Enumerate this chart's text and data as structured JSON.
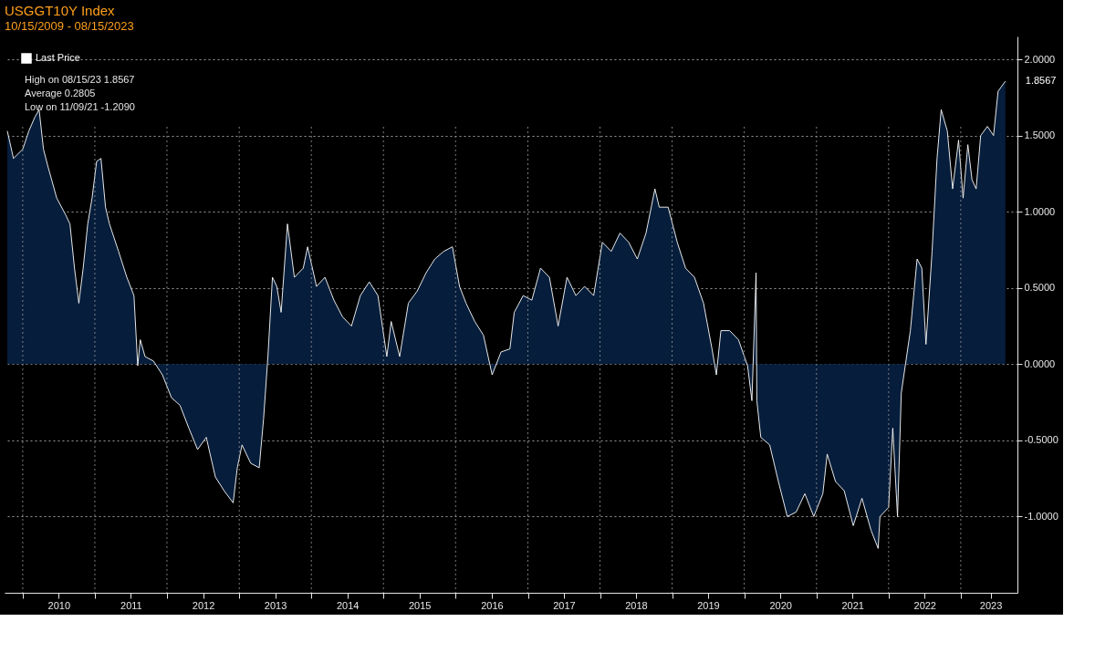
{
  "chart_data": {
    "type": "area",
    "title": "USGGT10Y Index",
    "subtitle": "10/15/2009 - 08/15/2023",
    "x": [
      "2009-10-15",
      "2009-11-15",
      "2010-01-01",
      "2010-02-01",
      "2010-03-03",
      "2010-03-25",
      "2010-04-16",
      "2010-05-08",
      "2010-06-22",
      "2010-08-06",
      "2010-08-28",
      "2010-09-20",
      "2010-10-12",
      "2010-11-03",
      "2010-11-26",
      "2010-12-18",
      "2011-01-10",
      "2011-02-01",
      "2011-02-24",
      "2011-03-16",
      "2011-05-01",
      "2011-06-12",
      "2011-07-18",
      "2011-08-06",
      "2011-08-19",
      "2011-09-12",
      "2011-10-25",
      "2011-12-09",
      "2012-01-24",
      "2012-03-07",
      "2012-04-21",
      "2012-06-04",
      "2012-07-18",
      "2012-09-02",
      "2012-10-16",
      "2012-12-01",
      "2012-12-22",
      "2013-01-15",
      "2013-02-28",
      "2013-04-12",
      "2013-05-04",
      "2013-05-26",
      "2013-06-18",
      "2013-07-10",
      "2013-08-01",
      "2013-09-02",
      "2013-10-07",
      "2013-11-21",
      "2013-12-13",
      "2014-01-27",
      "2014-03-11",
      "2014-04-25",
      "2014-06-08",
      "2014-07-23",
      "2014-09-06",
      "2014-10-21",
      "2014-12-04",
      "2015-01-18",
      "2015-02-09",
      "2015-03-24",
      "2015-05-07",
      "2015-06-21",
      "2015-08-05",
      "2015-09-18",
      "2015-11-02",
      "2015-12-16",
      "2016-01-21",
      "2016-02-23",
      "2016-04-07",
      "2016-05-21",
      "2016-07-04",
      "2016-08-18",
      "2016-10-02",
      "2016-10-24",
      "2016-12-08",
      "2017-01-21",
      "2017-03-06",
      "2017-04-20",
      "2017-06-03",
      "2017-07-18",
      "2017-09-01",
      "2017-10-15",
      "2017-11-30",
      "2018-01-13",
      "2018-02-27",
      "2018-04-12",
      "2018-05-26",
      "2018-07-09",
      "2018-08-22",
      "2018-10-06",
      "2018-10-28",
      "2018-12-12",
      "2019-01-27",
      "2019-03-10",
      "2019-04-24",
      "2019-06-09",
      "2019-07-22",
      "2019-08-13",
      "2019-09-05",
      "2019-10-19",
      "2019-12-03",
      "2020-01-18",
      "2020-02-09",
      "2020-03-01",
      "2020-03-05",
      "2020-03-25",
      "2020-05-09",
      "2020-06-22",
      "2020-08-06",
      "2020-09-20",
      "2020-11-03",
      "2020-12-18",
      "2021-02-02",
      "2021-02-24",
      "2021-04-07",
      "2021-05-21",
      "2021-07-06",
      "2021-08-19",
      "2021-10-04",
      "2021-11-09",
      "2021-11-18",
      "2022-01-01",
      "2022-01-22",
      "2022-02-15",
      "2022-03-06",
      "2022-04-21",
      "2022-05-25",
      "2022-06-18",
      "2022-07-09",
      "2022-08-09",
      "2022-09-03",
      "2022-09-24",
      "2022-10-25",
      "2022-11-21",
      "2022-12-21",
      "2023-01-13",
      "2023-02-06",
      "2023-02-27",
      "2023-03-20",
      "2023-04-12",
      "2023-05-16",
      "2023-06-16",
      "2023-07-09",
      "2023-08-15"
    ],
    "series": [
      {
        "name": "Last Price",
        "color": "#ffffff",
        "values": [
          1.53,
          1.35,
          1.41,
          1.53,
          1.62,
          1.67,
          1.41,
          1.3,
          1.09,
          0.98,
          0.92,
          0.63,
          0.4,
          0.63,
          0.92,
          1.09,
          1.33,
          1.35,
          1.03,
          0.92,
          0.74,
          0.57,
          0.45,
          -0.01,
          0.16,
          0.05,
          0.02,
          -0.07,
          -0.22,
          -0.27,
          -0.42,
          -0.56,
          -0.48,
          -0.74,
          -0.83,
          -0.91,
          -0.68,
          -0.53,
          -0.65,
          -0.68,
          -0.36,
          0.05,
          0.57,
          0.51,
          0.34,
          0.92,
          0.57,
          0.63,
          0.77,
          0.51,
          0.57,
          0.42,
          0.31,
          0.25,
          0.45,
          0.54,
          0.45,
          0.05,
          0.28,
          0.05,
          0.4,
          0.48,
          0.6,
          0.69,
          0.74,
          0.77,
          0.51,
          0.4,
          0.28,
          0.19,
          -0.07,
          0.08,
          0.1,
          0.34,
          0.45,
          0.42,
          0.63,
          0.57,
          0.25,
          0.57,
          0.45,
          0.51,
          0.45,
          0.8,
          0.74,
          0.86,
          0.8,
          0.69,
          0.86,
          1.15,
          1.03,
          1.03,
          0.8,
          0.63,
          0.57,
          0.4,
          0.1,
          -0.07,
          0.22,
          0.22,
          0.16,
          -0.01,
          -0.24,
          0.6,
          -0.24,
          -0.48,
          -0.53,
          -0.77,
          -1.0,
          -0.97,
          -0.85,
          -1.0,
          -0.85,
          -0.59,
          -0.77,
          -0.83,
          -1.06,
          -0.88,
          -1.09,
          -1.209,
          -1.0,
          -0.94,
          -0.42,
          -1.0,
          -0.19,
          0.22,
          0.69,
          0.63,
          0.13,
          0.74,
          1.35,
          1.67,
          1.53,
          1.15,
          1.47,
          1.09,
          1.44,
          1.21,
          1.15,
          1.5,
          1.56,
          1.5,
          1.79,
          1.8567
        ]
      }
    ],
    "xlim": [
      "2009-10-01",
      "2023-10-15"
    ],
    "xticks": [
      {
        "value": "2010-01-01",
        "label": null
      },
      {
        "value": "2010-07-02",
        "label": "2010"
      },
      {
        "value": "2011-01-01",
        "label": null
      },
      {
        "value": "2011-07-02",
        "label": "2011"
      },
      {
        "value": "2012-01-01",
        "label": null
      },
      {
        "value": "2012-07-02",
        "label": "2012"
      },
      {
        "value": "2013-01-01",
        "label": null
      },
      {
        "value": "2013-07-02",
        "label": "2013"
      },
      {
        "value": "2014-01-01",
        "label": null
      },
      {
        "value": "2014-07-02",
        "label": "2014"
      },
      {
        "value": "2015-01-01",
        "label": null
      },
      {
        "value": "2015-07-02",
        "label": "2015"
      },
      {
        "value": "2016-01-01",
        "label": null
      },
      {
        "value": "2016-07-02",
        "label": "2016"
      },
      {
        "value": "2017-01-01",
        "label": null
      },
      {
        "value": "2017-07-02",
        "label": "2017"
      },
      {
        "value": "2018-01-01",
        "label": null
      },
      {
        "value": "2018-07-02",
        "label": "2018"
      },
      {
        "value": "2019-01-01",
        "label": null
      },
      {
        "value": "2019-07-02",
        "label": "2019"
      },
      {
        "value": "2020-01-01",
        "label": null
      },
      {
        "value": "2020-07-02",
        "label": "2020"
      },
      {
        "value": "2021-01-01",
        "label": null
      },
      {
        "value": "2021-07-02",
        "label": "2021"
      },
      {
        "value": "2022-01-01",
        "label": null
      },
      {
        "value": "2022-07-02",
        "label": "2022"
      },
      {
        "value": "2023-01-01",
        "label": null
      },
      {
        "value": "2023-06-01",
        "label": "2023"
      }
    ],
    "ylim": [
      -1.5,
      2.15
    ],
    "yticks": [
      {
        "value": -1.0,
        "label": "-1.0000"
      },
      {
        "value": -0.5,
        "label": "-0.5000"
      },
      {
        "value": 0,
        "label": "0.0000"
      },
      {
        "value": 0.5,
        "label": "0.5000"
      },
      {
        "value": 1.0,
        "label": "1.0000"
      },
      {
        "value": 1.5,
        "label": "1.5000"
      },
      {
        "value": 2.0,
        "label": "2.0000"
      }
    ],
    "grid": true,
    "line_style": "solid",
    "legend": "top left",
    "annotations": [
      "High on 08/15/23   1.8567",
      "Average   0.2805",
      "Low on 11/09/21   -1.2090",
      {
        "text": "1.8567",
        "x": "2023-08-15",
        "y": 1.8567
      }
    ]
  }
}
